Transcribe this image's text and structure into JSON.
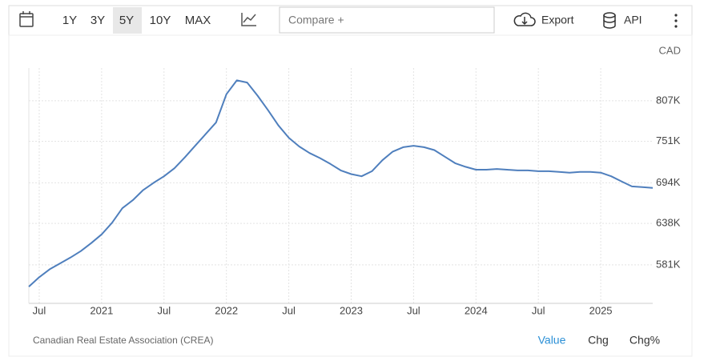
{
  "toolbar": {
    "ranges": [
      "1Y",
      "3Y",
      "5Y",
      "10Y",
      "MAX"
    ],
    "compare": "Compare +",
    "export": "Export",
    "api": "API"
  },
  "chart_data": {
    "type": "line",
    "unit_label": "CAD",
    "categories": [
      null,
      "Jul",
      null,
      null,
      null,
      null,
      null,
      "2021",
      null,
      null,
      null,
      null,
      null,
      "Jul",
      null,
      null,
      null,
      null,
      null,
      "2022",
      null,
      null,
      null,
      null,
      null,
      "Jul",
      null,
      null,
      null,
      null,
      null,
      "2023",
      null,
      null,
      null,
      null,
      null,
      "Jul",
      null,
      null,
      null,
      null,
      null,
      "2024",
      null,
      null,
      null,
      null,
      null,
      "Jul",
      null,
      null,
      null,
      null,
      null,
      "2025",
      null,
      null,
      null,
      null,
      null
    ],
    "series": [
      {
        "color": "#4f7fbd",
        "values": [
          551000,
          564000,
          575000,
          583000,
          591000,
          600000,
          611000,
          623000,
          639000,
          659000,
          670000,
          684000,
          694000,
          703000,
          714000,
          729000,
          745000,
          761000,
          777000,
          816000,
          835000,
          832000,
          814000,
          794000,
          773000,
          756000,
          744000,
          735000,
          728000,
          720000,
          711000,
          706000,
          703000,
          710000,
          725000,
          737000,
          743000,
          745000,
          743000,
          739000,
          730000,
          721000,
          716000,
          712000,
          712000,
          713000,
          712000,
          711000,
          711000,
          710000,
          710000,
          709000,
          708000,
          709000,
          709000,
          708000,
          703000,
          696000,
          689000,
          688000,
          687000
        ]
      }
    ],
    "ylim": [
      528000,
      852000
    ],
    "yticks": [
      {
        "value": 581000,
        "label": "581K"
      },
      {
        "value": 638000,
        "label": "638K"
      },
      {
        "value": 694000,
        "label": "694K"
      },
      {
        "value": 751000,
        "label": "751K"
      },
      {
        "value": 807000,
        "label": "807K"
      }
    ],
    "grid": true,
    "source": "Canadian Real Estate Association (CREA)"
  },
  "footer": {
    "tabs": [
      "Value",
      "Chg",
      "Chg%"
    ]
  }
}
